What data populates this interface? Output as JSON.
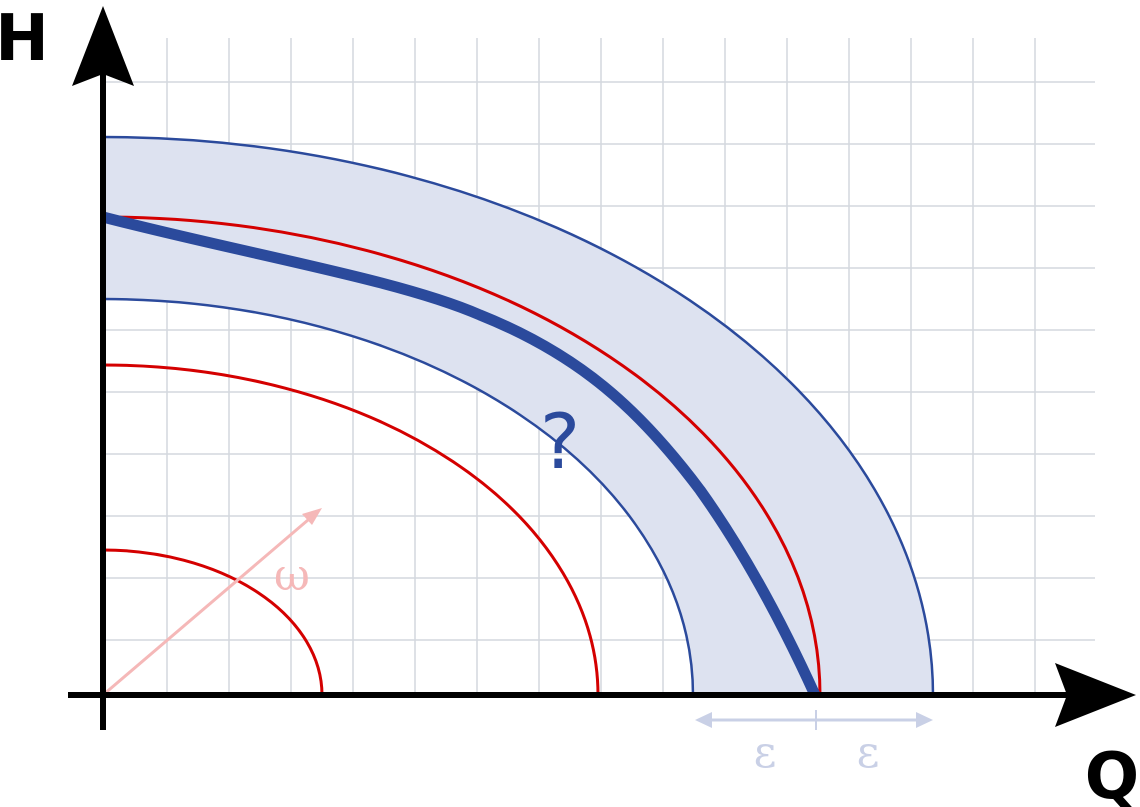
{
  "axes": {
    "y_label": "H",
    "x_label": "Q"
  },
  "annotations": {
    "question": "?",
    "omega": "ω",
    "epsilon_left": "ε",
    "epsilon_right": "ε"
  }
}
